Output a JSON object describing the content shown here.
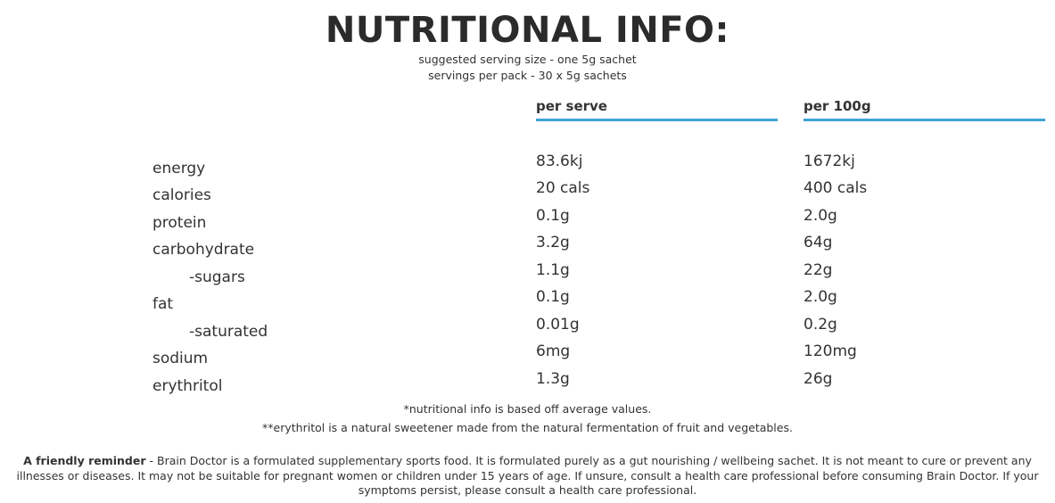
{
  "header": {
    "title": "NUTRITIONAL INFO:",
    "serving_size": "suggested serving size - one 5g sachet",
    "servings_per_pack": "servings per pack - 30 x 5g sachets"
  },
  "table": {
    "columns": [
      "per serve",
      "per 100g"
    ],
    "accent_color": "#3fa2d8",
    "rows": [
      {
        "label": "energy",
        "per_serve": "83.6kj",
        "per_100g": "1672kj"
      },
      {
        "label": "calories",
        "per_serve": "20 cals",
        "per_100g": "400 cals"
      },
      {
        "label": "protein",
        "per_serve": "0.1g",
        "per_100g": "2.0g"
      },
      {
        "label": "carbohydrate",
        "per_serve": "3.2g",
        "per_100g": "64g"
      },
      {
        "label": "-sugars",
        "per_serve": "1.1g",
        "per_100g": "22g"
      },
      {
        "label": "fat",
        "per_serve": "0.1g",
        "per_100g": "2.0g"
      },
      {
        "label": "-saturated",
        "per_serve": "0.01g",
        "per_100g": "0.2g"
      },
      {
        "label": "sodium",
        "per_serve": "6mg",
        "per_100g": "120mg"
      },
      {
        "label": "erythritol",
        "per_serve": "1.3g",
        "per_100g": "26g"
      }
    ]
  },
  "footnotes": {
    "note1": "*nutritional info is based off average values.",
    "note2": "**erythritol is a natural sweetener made from the natural fermentation of fruit and vegetables."
  },
  "reminder": {
    "heading": "A friendly reminder",
    "text": " - Brain Doctor is a formulated supplementary sports food. It is formulated purely as a gut nourishing / wellbeing sachet. It is not meant to cure or prevent any illnesses or diseases. It may not be suitable for pregnant women or children under 15 years of age. If unsure, consult a health care professional before consuming Brain Doctor. If your symptoms persist, please consult a health care professional."
  }
}
